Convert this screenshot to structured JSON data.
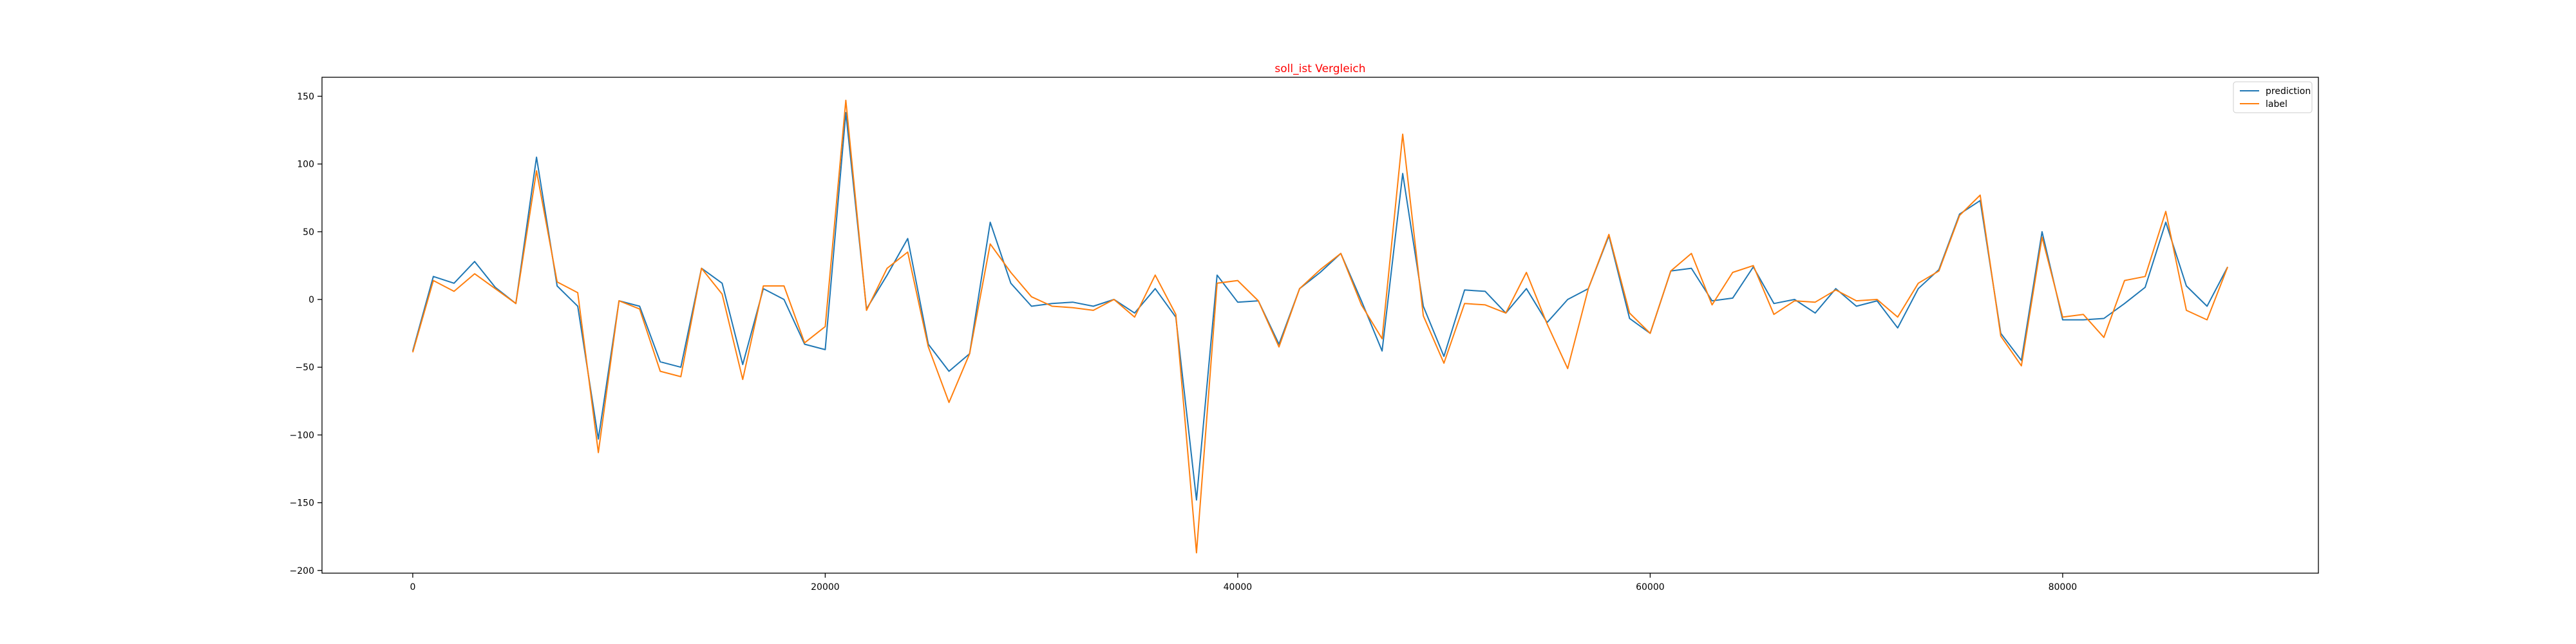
{
  "chart_data": {
    "type": "line",
    "title": "soll_ist Vergleich",
    "title_color": "#ff0000",
    "xlabel": "",
    "ylabel": "",
    "xlim": [
      -4400,
      92400
    ],
    "ylim": [
      -202,
      164
    ],
    "xticks": [
      0,
      20000,
      40000,
      60000,
      80000
    ],
    "yticks": [
      -200,
      -150,
      -100,
      -50,
      0,
      50,
      100,
      150
    ],
    "x_tick_labels": [
      "0",
      "20000",
      "40000",
      "60000",
      "80000"
    ],
    "y_tick_labels": [
      "−200",
      "−150",
      "−100",
      "−50",
      "0",
      "50",
      "100",
      "150"
    ],
    "grid": false,
    "legend_position": "top-right",
    "x": [
      0,
      1000,
      2000,
      3000,
      4000,
      5000,
      6000,
      7000,
      8000,
      9000,
      10000,
      11000,
      12000,
      13000,
      14000,
      15000,
      16000,
      17000,
      18000,
      19000,
      20000,
      21000,
      22000,
      23000,
      24000,
      25000,
      26000,
      27000,
      28000,
      29000,
      30000,
      31000,
      32000,
      33000,
      34000,
      35000,
      36000,
      37000,
      38000,
      39000,
      40000,
      41000,
      42000,
      43000,
      44000,
      45000,
      46000,
      47000,
      48000,
      49000,
      50000,
      51000,
      52000,
      53000,
      54000,
      55000,
      56000,
      57000,
      58000,
      59000,
      60000,
      61000,
      62000,
      63000,
      64000,
      65000,
      66000,
      67000,
      68000,
      69000,
      70000,
      71000,
      72000,
      73000,
      74000,
      75000,
      76000,
      77000,
      78000,
      79000,
      80000,
      81000,
      82000,
      83000,
      84000,
      85000,
      86000,
      87000,
      88000
    ],
    "series": [
      {
        "name": "prediction",
        "color": "#1f77b4",
        "values": [
          -38,
          17,
          12,
          28,
          9,
          -3,
          105,
          10,
          -5,
          -103,
          -1,
          -5,
          -46,
          -50,
          23,
          12,
          -48,
          8,
          0,
          -33,
          -37,
          138,
          -7,
          18,
          45,
          -33,
          -53,
          -40,
          57,
          12,
          -5,
          -3,
          -2,
          -5,
          0,
          -10,
          8,
          -13,
          -148,
          18,
          -2,
          -1,
          -33,
          8,
          20,
          34,
          -1,
          -38,
          93,
          -5,
          -42,
          7,
          6,
          -10,
          8,
          -17,
          0,
          8,
          47,
          -14,
          -25,
          21,
          23,
          -1,
          1,
          24,
          -3,
          0,
          -10,
          8,
          -5,
          -1,
          -21,
          8,
          22,
          63,
          73,
          -25,
          -45,
          50,
          -15,
          -15,
          -14,
          -3,
          9,
          57,
          10,
          -5,
          24
        ]
      },
      {
        "name": "label",
        "color": "#ff7f0e",
        "values": [
          -39,
          14,
          6,
          19,
          8,
          -3,
          95,
          13,
          5,
          -113,
          -1,
          -7,
          -53,
          -57,
          23,
          4,
          -59,
          10,
          10,
          -32,
          -20,
          147,
          -8,
          23,
          35,
          -35,
          -76,
          -40,
          41,
          20,
          2,
          -5,
          -6,
          -8,
          0,
          -13,
          18,
          -11,
          -187,
          12,
          14,
          -1,
          -35,
          8,
          22,
          34,
          -4,
          -29,
          122,
          -12,
          -47,
          -3,
          -4,
          -10,
          20,
          -18,
          -51,
          8,
          48,
          -10,
          -25,
          21,
          34,
          -4,
          20,
          25,
          -11,
          -1,
          -2,
          7,
          -1,
          0,
          -13,
          12,
          21,
          62,
          77,
          -27,
          -49,
          46,
          -13,
          -11,
          -28,
          14,
          17,
          65,
          -8,
          -15,
          24
        ]
      }
    ]
  }
}
